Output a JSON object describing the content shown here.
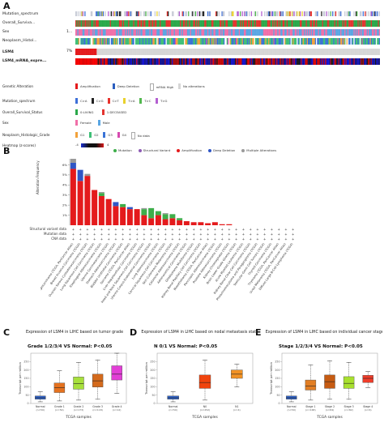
{
  "panelA": {
    "letter": "A",
    "tracks": [
      {
        "label": "Mutation_spectrum",
        "type": "mutation",
        "pct": ""
      },
      {
        "label": "Overall_Surviva...",
        "type": "survival",
        "pct": ""
      },
      {
        "label": "Sex",
        "type": "sex",
        "pct": "1..."
      },
      {
        "label": "Neoplasm_Histol...",
        "type": "grade",
        "pct": ""
      },
      {
        "label": "LSM4",
        "type": "alteration",
        "pct": "7%"
      },
      {
        "label": "LSM4_mRNA_expre...",
        "type": "heatmap",
        "pct": ""
      }
    ],
    "legends": [
      {
        "label": "Genetic Alteration",
        "items": [
          {
            "name": "Amplification",
            "color": "#e41a1c"
          },
          {
            "name": "Deep Deletion",
            "color": "#2c5fbf"
          },
          {
            "name": "mRNA High",
            "color": "#ffffff"
          },
          {
            "name": "No alterations",
            "color": "#d6d6d6"
          }
        ]
      },
      {
        "label": "Mutation_spectrum",
        "items": [
          {
            "name": "C>A",
            "color": "#3d6fd8"
          },
          {
            "name": "C>G",
            "color": "#222222"
          },
          {
            "name": "C>T",
            "color": "#e8322c"
          },
          {
            "name": "T>A",
            "color": "#e9d12c"
          },
          {
            "name": "T>C",
            "color": "#53b84f"
          },
          {
            "name": "T>G",
            "color": "#b45fd1"
          }
        ]
      },
      {
        "label": "Overall_Survival_Status",
        "items": [
          {
            "name": "0:LIVING",
            "color": "#2aa84a"
          },
          {
            "name": "1:DECEASED",
            "color": "#e3342f"
          }
        ]
      },
      {
        "label": "Sex",
        "items": [
          {
            "name": "Female",
            "color": "#f06fa8"
          },
          {
            "name": "Male",
            "color": "#5aa6e3"
          }
        ]
      },
      {
        "label": "Neoplasm_Histologic_Grade",
        "items": [
          {
            "name": "G1",
            "color": "#f2a23b"
          },
          {
            "name": "G2",
            "color": "#3fbf77"
          },
          {
            "name": "G3",
            "color": "#3a73d6"
          },
          {
            "name": "G4",
            "color": "#d64ab0"
          },
          {
            "name": "No data",
            "color": "#ffffff"
          }
        ]
      }
    ],
    "heatmap_legend": {
      "label": "Heatmap (z-scores)",
      "min": "-4",
      "max": "4"
    }
  },
  "panelB": {
    "letter": "B",
    "legend": [
      {
        "name": "Mutation",
        "color": "#3dae4a"
      },
      {
        "name": "Structural Variant",
        "color": "#8e5bb5"
      },
      {
        "name": "Amplification",
        "color": "#e41a1c"
      },
      {
        "name": "Deep Deletion",
        "color": "#2f56c6"
      },
      {
        "name": "Multiple Alterations",
        "color": "#9a9a9a"
      }
    ],
    "ylabel": "Alteration Frequency",
    "ytick_labels": [
      "6%",
      "5%",
      "4%",
      "3%",
      "2%",
      "1%"
    ],
    "row_labels": [
      "Structural variant data",
      "Mutation data",
      "CNA data"
    ],
    "row_marker": "+",
    "study_labels": [
      "Cholangiocarcinoma (TCGA, PanCancer Atlas)",
      "Breast Invasive Carcinoma (TCGA)",
      "Ovarian Serous Cystadenocarcinoma (TCGA)",
      "Lung Squamous Cell Carcinoma (TCGA)",
      "Esophageal Adenocarcinoma (TCGA)",
      "Uterine Carcinosarcoma (TCGA)",
      "Stomach Adenocarcinoma (TCGA)",
      "Bladder Urothelial Carcinoma (TCGA)",
      "Sarcoma (TCGA, PanCancer Atlas)",
      "Liver Hepatocellular Carcinoma (TCGA)",
      "Head and Neck Squamous Cell Carcinoma (TCGA)",
      "Uterine Corpus Endometrial Carcinoma (TCGA)",
      "Lung Adenocarcinoma (TCGA)",
      "Cervical Squamous Cell Carcinoma (TCGA)",
      "Skin Cutaneous Melanoma (TCGA)",
      "Colorectal Adenocarcinoma (TCGA)",
      "Adrenocortical Carcinoma (TCGA)",
      "Glioblastoma Multiforme (TCGA)",
      "Kidney Renal Papillary Cell Carcinoma (TCGA)",
      "Mesothelioma (TCGA, PanCancer Atlas)",
      "Pancreatic Adenocarcinoma (TCGA)",
      "Prostate Adenocarcinoma (TCGA)",
      "Kidney Chromophobe (TCGA)",
      "Brain Lower Grade Glioma (TCGA)",
      "Acute Myeloid Leukemia (TCGA)",
      "Kidney Renal Clear Cell Carcinoma (TCGA)",
      "Pheochromocytoma and Paraganglioma (TCGA)",
      "Testicular Germ Cell Tumors (TCGA)",
      "Thyroid Carcinoma (TCGA)",
      "Thymoma (TCGA, PanCancer Atlas)",
      "Uveal Melanoma (TCGA, PanCancer Atlas)",
      "Diffuse Large B-Cell Lymphoma (TCGA)"
    ]
  },
  "chart_data": [
    {
      "type": "bar",
      "title": "",
      "ylabel": "Alteration Frequency",
      "ylim": [
        0,
        6.6
      ],
      "categories": [
        "1",
        "2",
        "3",
        "4",
        "5",
        "6",
        "7",
        "8",
        "9",
        "10",
        "11",
        "12",
        "13",
        "14",
        "15",
        "16",
        "17",
        "18",
        "19",
        "20",
        "21",
        "22",
        "23",
        "24",
        "25",
        "26",
        "27",
        "28",
        "29",
        "30",
        "31",
        "32"
      ],
      "series": [
        {
          "name": "Amplification",
          "values": [
            5.6,
            4.4,
            4.9,
            3.5,
            2.9,
            2.6,
            1.9,
            1.8,
            1.6,
            1.6,
            1.0,
            0.7,
            1.0,
            0.6,
            0.7,
            0.5,
            0.4,
            0.3,
            0.3,
            0.2,
            0.3,
            0.1,
            0.1,
            0,
            0,
            0,
            0,
            0,
            0,
            0,
            0,
            0
          ]
        },
        {
          "name": "Deep Deletion",
          "values": [
            0.6,
            1.1,
            0,
            0,
            0,
            0,
            0.4,
            0,
            0.2,
            0,
            0,
            0,
            0,
            0,
            0,
            0,
            0,
            0,
            0,
            0,
            0,
            0,
            0,
            0,
            0,
            0,
            0,
            0,
            0,
            0,
            0,
            0
          ]
        },
        {
          "name": "Mutation",
          "values": [
            0,
            0,
            0,
            0,
            0.3,
            0,
            0,
            0.3,
            0,
            0,
            0.6,
            1.0,
            0.4,
            0.5,
            0.4,
            0.2,
            0,
            0,
            0,
            0,
            0,
            0,
            0,
            0,
            0,
            0,
            0,
            0,
            0,
            0,
            0,
            0
          ]
        },
        {
          "name": "Multiple Alterations",
          "values": [
            0.4,
            0,
            0.2,
            0,
            0.1,
            0,
            0,
            0,
            0,
            0,
            0.1,
            0,
            0,
            0.1,
            0,
            0,
            0,
            0,
            0,
            0,
            0,
            0,
            0,
            0,
            0,
            0,
            0,
            0,
            0,
            0,
            0,
            0
          ]
        }
      ]
    },
    {
      "type": "box",
      "title": "Expression of LSM4 in LIHC based on tumor grade",
      "subtitle": "Grade 1/2/3/4 VS Normal: P<0.05",
      "ylabel": "Transcript per million",
      "xlabel": "TCGA samples",
      "categories": [
        "Normal",
        "Grade 1",
        "Grade 2",
        "Grade 3",
        "Grade 4"
      ],
      "n_labels": [
        "(n=50)",
        "(n=54)",
        "(n=173)",
        "(n=118)",
        "(n=12)"
      ],
      "colors": [
        "#2e62c9",
        "#e5721f",
        "#a7e03c",
        "#d46a1c",
        "#e23fd6"
      ],
      "boxes": [
        {
          "min": 10,
          "q1": 25,
          "median": 34,
          "q3": 45,
          "max": 70
        },
        {
          "min": 15,
          "q1": 65,
          "median": 95,
          "q3": 122,
          "max": 195
        },
        {
          "min": 20,
          "q1": 85,
          "median": 118,
          "q3": 158,
          "max": 245
        },
        {
          "min": 25,
          "q1": 98,
          "median": 135,
          "q3": 175,
          "max": 260
        },
        {
          "min": 60,
          "q1": 140,
          "median": 175,
          "q3": 225,
          "max": 300
        }
      ],
      "ylim": [
        0,
        300
      ]
    },
    {
      "type": "box",
      "title": "Expression of LSM4 in LIHC based on nodal metastasis status",
      "subtitle": "N 0/1 VS Normal: P<0.05",
      "ylabel": "Transcript per million",
      "xlabel": "TCGA samples",
      "categories": [
        "Normal",
        "N0",
        "N1"
      ],
      "n_labels": [
        "(n=50)",
        "(n=252)",
        "(n=4)"
      ],
      "colors": [
        "#2e62c9",
        "#f0440e",
        "#f19224"
      ],
      "boxes": [
        {
          "min": 10,
          "q1": 25,
          "median": 34,
          "q3": 45,
          "max": 70
        },
        {
          "min": 20,
          "q1": 90,
          "median": 125,
          "q3": 170,
          "max": 260
        },
        {
          "min": 100,
          "q1": 150,
          "median": 175,
          "q3": 200,
          "max": 235
        }
      ],
      "ylim": [
        0,
        300
      ]
    },
    {
      "type": "box",
      "title": "Expression of LSM4 in LIHC based on individual cancer stages",
      "subtitle": "Stage 1/2/3/4 VS Normal: P<0.05",
      "ylabel": "Transcript per million",
      "xlabel": "TCGA samples",
      "categories": [
        "Normal",
        "Stage 1",
        "Stage 2",
        "Stage 3",
        "Stage 4"
      ],
      "n_labels": [
        "(n=50)",
        "(n=168)",
        "(n=84)",
        "(n=82)",
        "(n=6)"
      ],
      "colors": [
        "#2e62c9",
        "#e27e23",
        "#c65b12",
        "#a8e02e",
        "#f03d2a"
      ],
      "boxes": [
        {
          "min": 10,
          "q1": 25,
          "median": 34,
          "q3": 45,
          "max": 70
        },
        {
          "min": 20,
          "q1": 80,
          "median": 105,
          "q3": 140,
          "max": 230
        },
        {
          "min": 25,
          "q1": 90,
          "median": 130,
          "q3": 170,
          "max": 255
        },
        {
          "min": 25,
          "q1": 90,
          "median": 120,
          "q3": 160,
          "max": 245
        },
        {
          "min": 95,
          "q1": 125,
          "median": 150,
          "q3": 168,
          "max": 190
        }
      ],
      "ylim": [
        0,
        300
      ]
    }
  ],
  "panelC": {
    "letter": "C"
  },
  "panelD": {
    "letter": "D"
  },
  "panelE": {
    "letter": "E"
  }
}
